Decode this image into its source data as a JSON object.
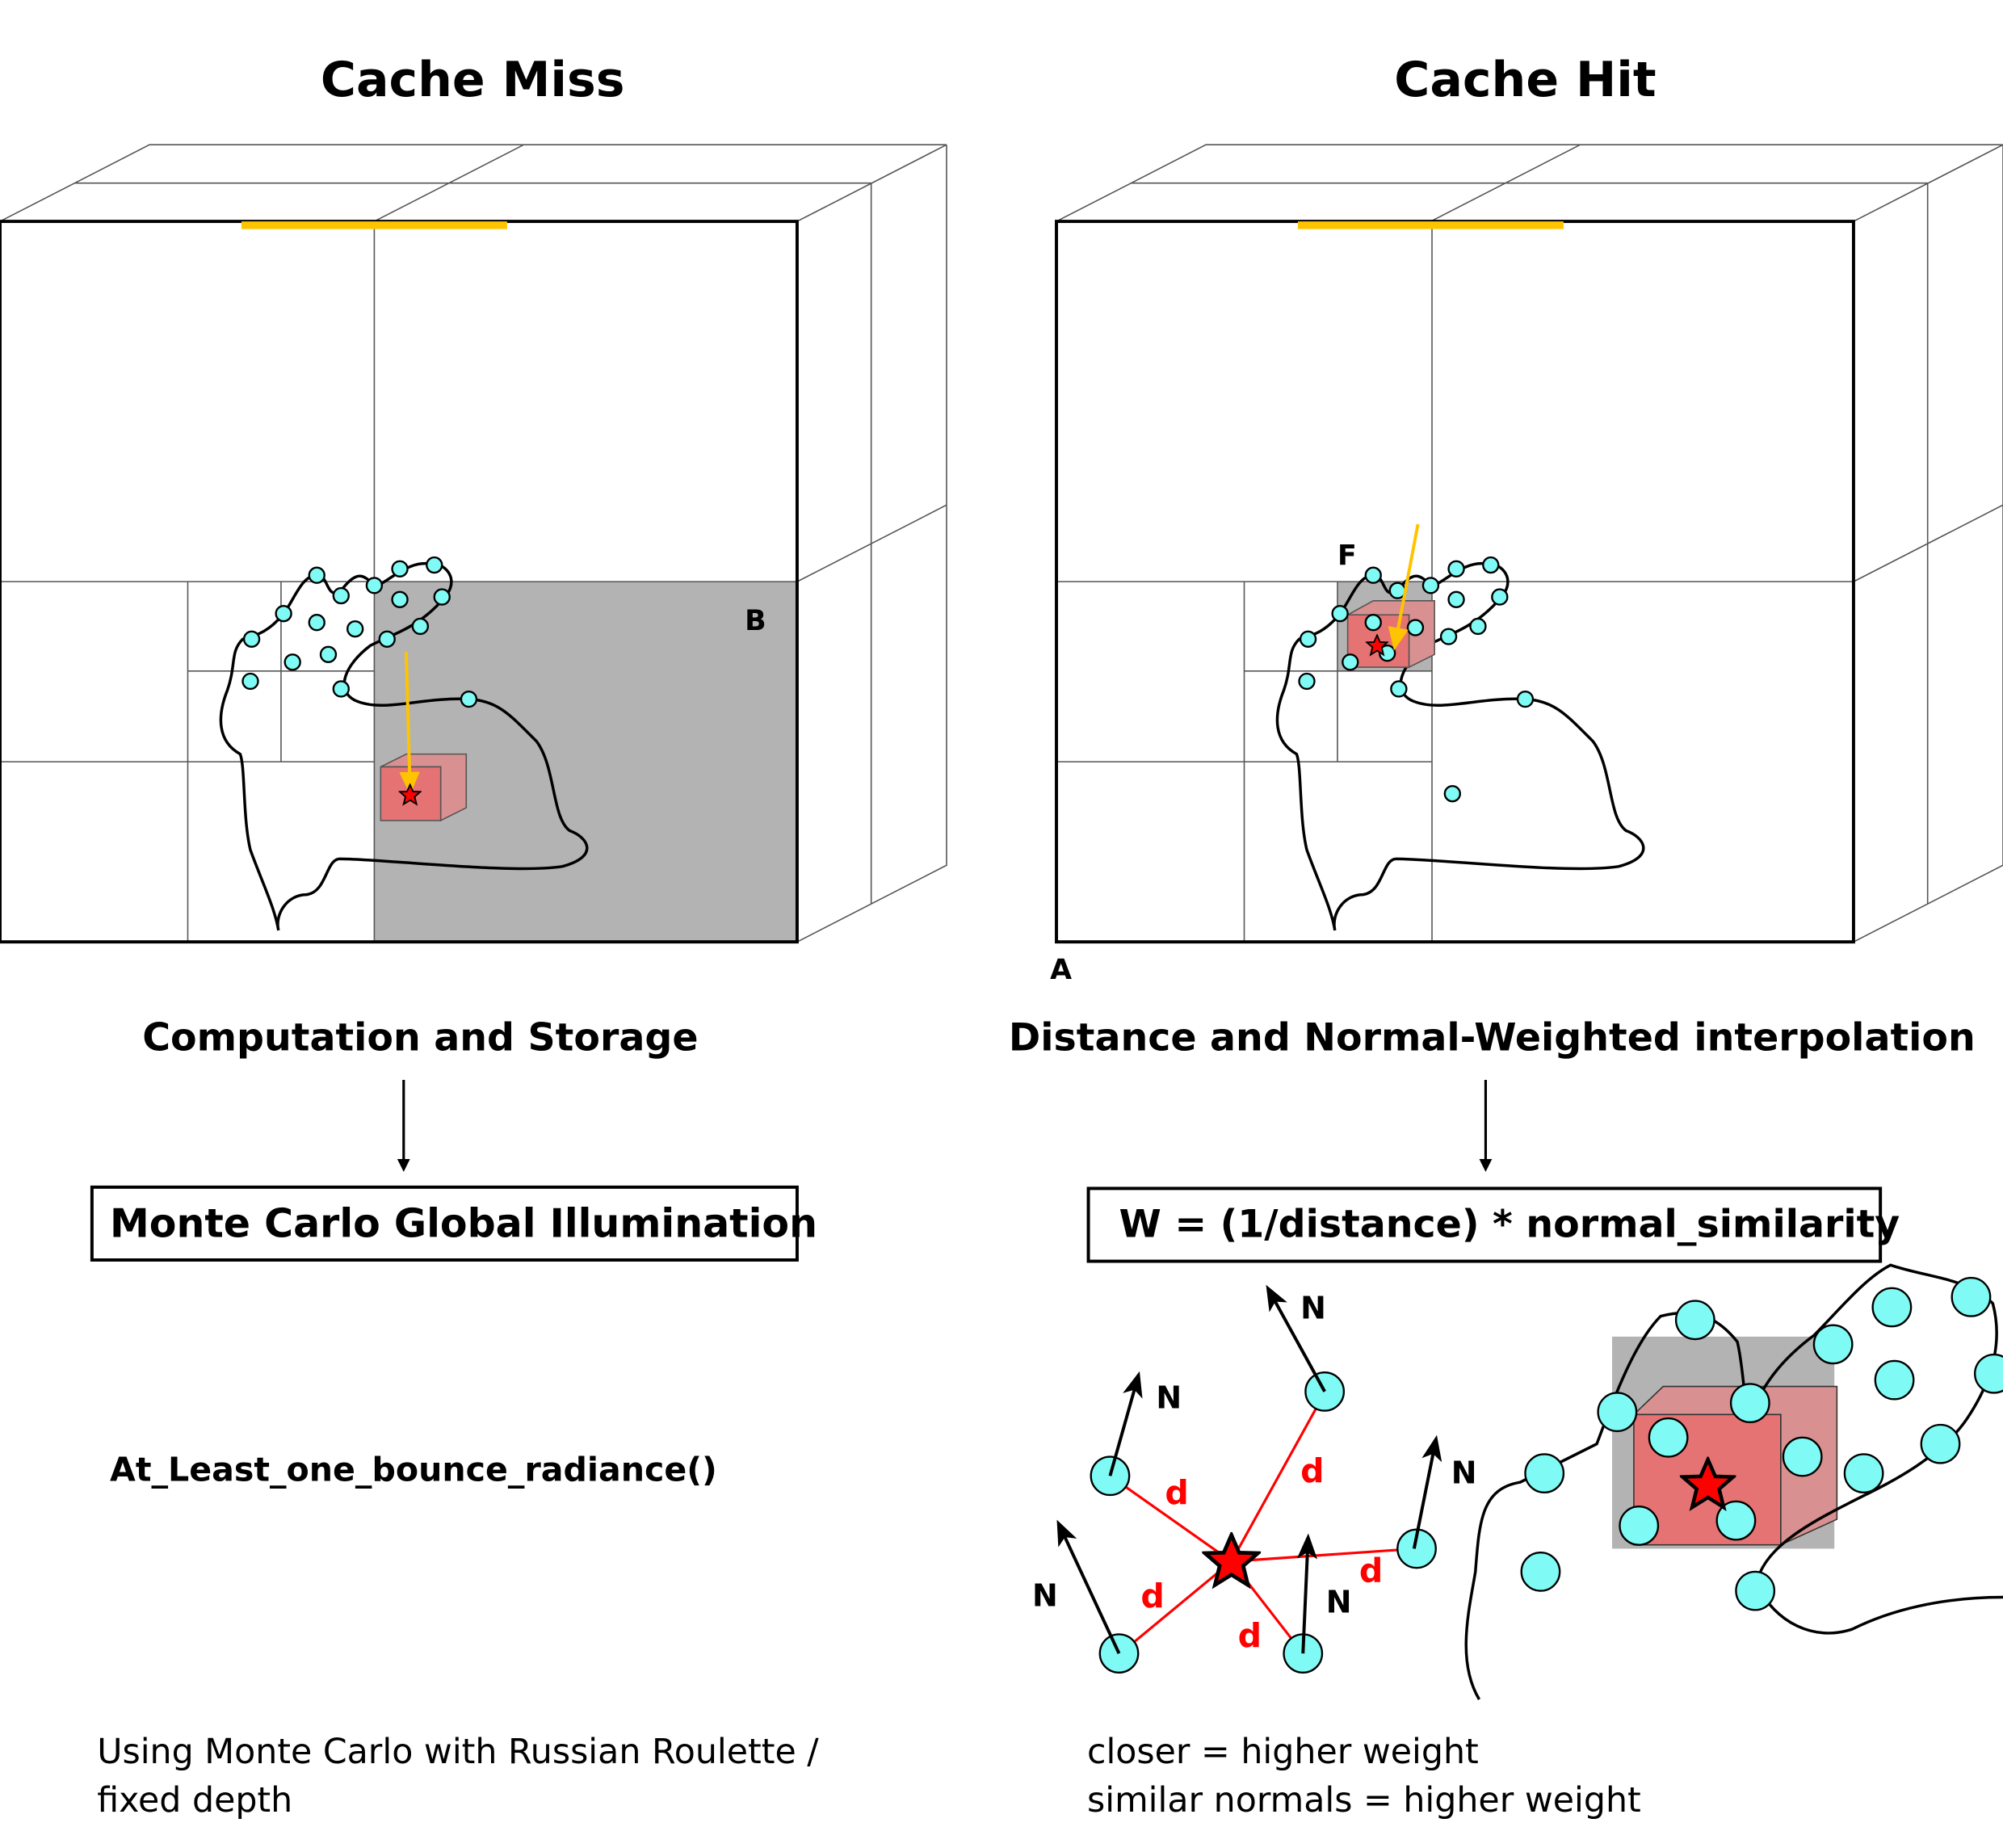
{
  "left": {
    "title": "Cache Miss",
    "label_b": "B",
    "subtitle": "Computation and Storage",
    "box_label": "Monte Carlo Global Illumination",
    "function": "At_Least_one_bounce_radiance()",
    "note_line1": "Using Monte Carlo with Russian Roulette /",
    "note_line2": "fixed depth"
  },
  "right": {
    "title": "Cache Hit",
    "label_f": "F",
    "label_a": "A",
    "subtitle": "Distance and Normal-Weighted interpolation",
    "box_label": "W = (1/distance) * normal_similarity",
    "normal_label": "N",
    "distance_label": "d",
    "note_line1": "closer = higher weight",
    "note_line2": "similar normals = higher weight"
  },
  "colors": {
    "gray_cell": "#b3b3b3",
    "cube": "#e57373",
    "sample": "#7ffaf4",
    "ray": "#ffc400",
    "star": "#ff0000",
    "distance": "#ff0000"
  }
}
